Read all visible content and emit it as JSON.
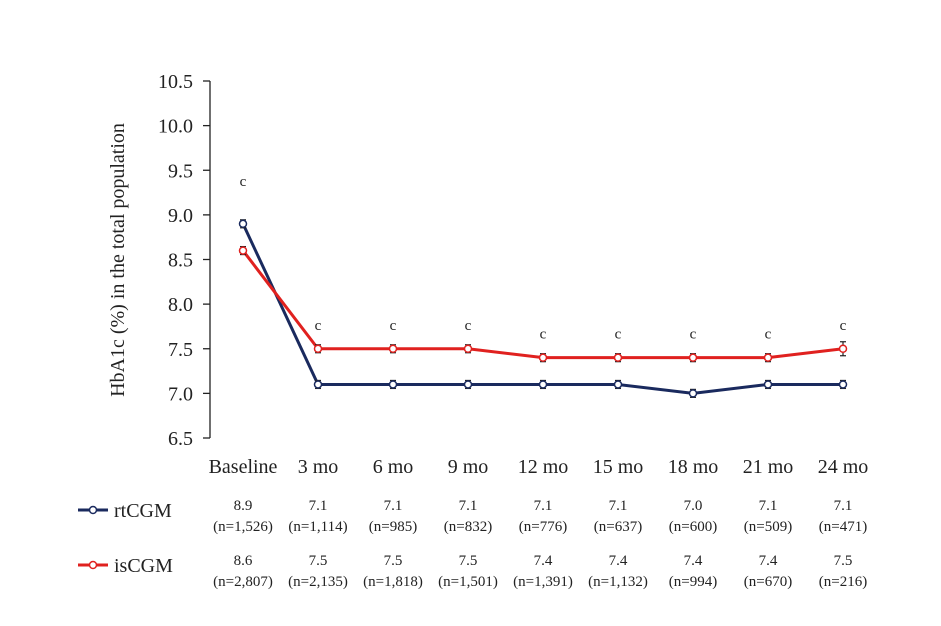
{
  "chart_data": {
    "type": "line",
    "ylabel": "HbA1c (%) in the total population",
    "xlabel": "",
    "ylim": [
      6.5,
      10.5
    ],
    "yticks": [
      "6.5",
      "7.0",
      "7.5",
      "8.0",
      "8.5",
      "9.0",
      "9.5",
      "10.0",
      "10.5"
    ],
    "categories": [
      "Baseline",
      "3 mo",
      "6 mo",
      "9 mo",
      "12 mo",
      "15 mo",
      "18 mo",
      "21 mo",
      "24 mo"
    ],
    "significance_markers": [
      "c",
      "c",
      "c",
      "c",
      "c",
      "c",
      "c",
      "c",
      "c"
    ],
    "grid": false,
    "legend_placement": "bottom-left table",
    "series": [
      {
        "name": "rtCGM",
        "color": "#1a2a5e",
        "values": [
          8.9,
          7.1,
          7.1,
          7.1,
          7.1,
          7.1,
          7.0,
          7.1,
          7.1
        ],
        "value_labels": [
          "8.9",
          "7.1",
          "7.1",
          "7.1",
          "7.1",
          "7.1",
          "7.0",
          "7.1",
          "7.1"
        ],
        "n_labels": [
          "(n=1,526)",
          "(n=1,114)",
          "(n=985)",
          "(n=832)",
          "(n=776)",
          "(n=637)",
          "(n=600)",
          "(n=509)",
          "(n=471)"
        ]
      },
      {
        "name": "isCGM",
        "color": "#e0211f",
        "values": [
          8.6,
          7.5,
          7.5,
          7.5,
          7.4,
          7.4,
          7.4,
          7.4,
          7.5
        ],
        "value_labels": [
          "8.6",
          "7.5",
          "7.5",
          "7.5",
          "7.4",
          "7.4",
          "7.4",
          "7.4",
          "7.5"
        ],
        "n_labels": [
          "(n=2,807)",
          "(n=2,135)",
          "(n=1,818)",
          "(n=1,501)",
          "(n=1,391)",
          "(n=1,132)",
          "(n=994)",
          "(n=670)",
          "(n=216)"
        ]
      }
    ]
  }
}
